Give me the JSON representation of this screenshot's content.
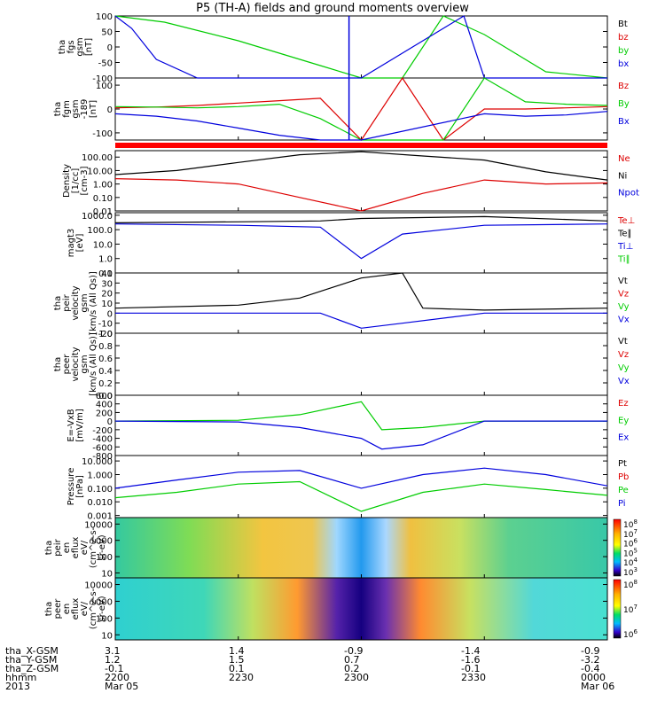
{
  "title": "P5 (TH-A) fields and ground moments overview",
  "colors": {
    "black": "#000000",
    "red": "#dd0000",
    "green": "#00cc00",
    "blue": "#0000dd",
    "bar_red": "#ff0000"
  },
  "panels": [
    {
      "id": "fgs",
      "ylabel_lines": [
        "tha",
        "fgs",
        "gsm",
        "[nT]"
      ],
      "ticks": [
        "100",
        "50",
        "0",
        "-50",
        "-100"
      ],
      "tick_vals": [
        100,
        50,
        0,
        -50,
        -100
      ],
      "ylim": [
        -100,
        100
      ],
      "log": false,
      "legend": [
        {
          "label": "Bt",
          "color": "black"
        },
        {
          "label": "bz",
          "color": "red"
        },
        {
          "label": "by",
          "color": "green"
        },
        {
          "label": "bx",
          "color": "blue"
        }
      ]
    },
    {
      "id": "fgm",
      "ylabel_lines": [
        "tha",
        "fgm",
        "gsm",
        "-189",
        "[nT]"
      ],
      "ticks": [
        "100",
        "0",
        "-100"
      ],
      "tick_vals": [
        100,
        0,
        -100
      ],
      "ylim": [
        -130,
        130
      ],
      "log": false,
      "legend": [
        {
          "label": "Bz",
          "color": "red"
        },
        {
          "label": "By",
          "color": "green"
        },
        {
          "label": "Bx",
          "color": "blue"
        }
      ]
    },
    {
      "id": "density",
      "ylabel_lines": [
        "Density",
        "[1/cc]",
        "[cm-3]"
      ],
      "ticks": [
        "100.00",
        "10.00",
        "1.00",
        "0.10",
        "0.01"
      ],
      "tick_vals": [
        100,
        10,
        1,
        0.1,
        0.01
      ],
      "ylim": [
        0.01,
        300
      ],
      "log": true,
      "legend": [
        {
          "label": "Ne",
          "color": "red"
        },
        {
          "label": "Ni",
          "color": "black"
        },
        {
          "label": "Npot",
          "color": "blue"
        }
      ]
    },
    {
      "id": "temp",
      "ylabel_lines": [
        "magt3",
        "[eV]"
      ],
      "ticks": [
        "1000.0",
        "100.0",
        "10.0",
        "1.0",
        "0.1"
      ],
      "tick_vals": [
        1000,
        100,
        10,
        1,
        0.1
      ],
      "ylim": [
        0.1,
        1500
      ],
      "log": true,
      "legend": [
        {
          "label": "Te⊥",
          "color": "red"
        },
        {
          "label": "Te∥",
          "color": "black"
        },
        {
          "label": "Ti⊥",
          "color": "blue"
        },
        {
          "label": "Ti∥",
          "color": "green"
        }
      ]
    },
    {
      "id": "peir_vel",
      "ylabel_lines": [
        "tha",
        "peir",
        "velocity",
        "gsm",
        "[km/s (All Qs)]"
      ],
      "ticks": [
        "40",
        "30",
        "20",
        "10",
        "0",
        "-10",
        "-20"
      ],
      "tick_vals": [
        40,
        30,
        20,
        10,
        0,
        -10,
        -20
      ],
      "ylim": [
        -20,
        40
      ],
      "log": false,
      "legend": [
        {
          "label": "Vt",
          "color": "black"
        },
        {
          "label": "Vz",
          "color": "red"
        },
        {
          "label": "Vy",
          "color": "green"
        },
        {
          "label": "Vx",
          "color": "blue"
        }
      ]
    },
    {
      "id": "peer_vel",
      "ylabel_lines": [
        "tha",
        "peer",
        "velocity",
        "gsm",
        "[km/s (All Qs)]"
      ],
      "ticks": [
        "1.0",
        "0.8",
        "0.6",
        "0.4",
        "0.2",
        "0.0"
      ],
      "tick_vals": [
        1.0,
        0.8,
        0.6,
        0.4,
        0.2,
        0.0
      ],
      "ylim": [
        0,
        1
      ],
      "log": false,
      "legend": [
        {
          "label": "Vt",
          "color": "black"
        },
        {
          "label": "Vz",
          "color": "red"
        },
        {
          "label": "Vy",
          "color": "green"
        },
        {
          "label": "Vx",
          "color": "blue"
        }
      ]
    },
    {
      "id": "efield",
      "ylabel_lines": [
        "E=-VxB",
        "[mV/m]"
      ],
      "ticks": [
        "600",
        "400",
        "200",
        "0",
        "-200",
        "-400",
        "-600",
        "-800"
      ],
      "tick_vals": [
        600,
        400,
        200,
        0,
        -200,
        -400,
        -600,
        -800
      ],
      "ylim": [
        -800,
        600
      ],
      "log": false,
      "legend": [
        {
          "label": "Ez",
          "color": "red"
        },
        {
          "label": "Ey",
          "color": "green"
        },
        {
          "label": "Ex",
          "color": "blue"
        }
      ]
    },
    {
      "id": "pressure",
      "ylabel_lines": [
        "Pressure",
        "[nPa]"
      ],
      "ticks": [
        "10.000",
        "1.000",
        "0.100",
        "0.010",
        "0.001"
      ],
      "tick_vals": [
        10,
        1,
        0.1,
        0.01,
        0.001
      ],
      "ylim": [
        0.0007,
        25
      ],
      "log": true,
      "legend": [
        {
          "label": "Pt",
          "color": "black"
        },
        {
          "label": "Pb",
          "color": "red"
        },
        {
          "label": "Pe",
          "color": "green"
        },
        {
          "label": "Pi",
          "color": "blue"
        }
      ]
    },
    {
      "id": "peir_spec",
      "ylabel_lines": [
        "tha",
        "peir",
        "en",
        "eflux",
        "eV/",
        "(cm^2-s-",
        "sr-eV)"
      ],
      "ticks": [
        "10000",
        "1000",
        "100",
        "10"
      ],
      "tick_vals": [
        10000,
        1000,
        100,
        10
      ],
      "ylim": [
        5,
        25000
      ],
      "log": true,
      "colorbar": [
        "10^8",
        "10^7",
        "10^6",
        "10^5",
        "10^4",
        "10^3"
      ]
    },
    {
      "id": "peer_spec",
      "ylabel_lines": [
        "tha",
        "peer",
        "en",
        "eflux",
        "eV/",
        "(cm^2-s-",
        "sr-eV)"
      ],
      "ticks": [
        "10000",
        "1000",
        "100",
        "10"
      ],
      "tick_vals": [
        10000,
        1000,
        100,
        10
      ],
      "ylim": [
        5,
        25000
      ],
      "log": true,
      "colorbar": [
        "10^8",
        "10^7",
        "10^6"
      ]
    }
  ],
  "footer": {
    "rows": [
      {
        "label": "tha_X-GSM",
        "values": [
          "3.1",
          "1.4",
          "-0.9",
          "-1.4",
          "-0.9"
        ]
      },
      {
        "label": "tha_Y-GSM",
        "values": [
          "1.2",
          "1.5",
          "0.7",
          "-1.6",
          "-3.2"
        ]
      },
      {
        "label": "tha_Z-GSM",
        "values": [
          "-0.1",
          "0.1",
          "0.2",
          "-0.1",
          "-0.4"
        ]
      },
      {
        "label": "hhmm",
        "values": [
          "2200",
          "2230",
          "2300",
          "2330",
          "0000"
        ]
      },
      {
        "label": "2013",
        "values": [
          "Mar 05",
          "",
          "",
          "",
          "Mar 06"
        ]
      }
    ]
  },
  "chart_data": {
    "type": "line",
    "title": "P5 (TH-A) fields and ground moments overview",
    "xlabel": "hhmm",
    "x_ticks": [
      "2200",
      "2230",
      "2300",
      "2330",
      "0000"
    ],
    "x_range": [
      "2013-03-05 22:00",
      "2013-03-06 00:00"
    ],
    "series": [
      {
        "panel": "fgs",
        "name": "by",
        "x": [
          2200,
          2212,
          2230,
          2250,
          2300,
          2310,
          2320,
          2330,
          2345,
          0
        ],
        "values": [
          100,
          80,
          20,
          -60,
          -100,
          -100,
          100,
          40,
          -80,
          -100
        ]
      },
      {
        "panel": "fgs",
        "name": "bx",
        "x": [
          2200,
          2204,
          2210,
          2220,
          2300,
          2325,
          2330,
          0
        ],
        "values": [
          100,
          60,
          -40,
          -100,
          -100,
          100,
          -100,
          -100
        ]
      },
      {
        "panel": "fgm",
        "name": "Bz",
        "x": [
          2200,
          2210,
          2220,
          2230,
          2240,
          2250,
          2300,
          2310,
          2320,
          2330,
          2340,
          2350,
          0
        ],
        "values": [
          5,
          8,
          15,
          25,
          35,
          45,
          -130,
          130,
          -130,
          0,
          0,
          5,
          10
        ]
      },
      {
        "panel": "fgm",
        "name": "By",
        "x": [
          2200,
          2210,
          2220,
          2230,
          2240,
          2250,
          2300,
          2320,
          2330,
          2340,
          2350,
          0
        ],
        "values": [
          10,
          8,
          5,
          10,
          20,
          -40,
          -130,
          -130,
          130,
          30,
          20,
          15
        ]
      },
      {
        "panel": "fgm",
        "name": "Bx",
        "x": [
          2200,
          2210,
          2220,
          2230,
          2240,
          2250,
          2300,
          2330,
          2340,
          2350,
          0
        ],
        "values": [
          -20,
          -30,
          -50,
          -80,
          -110,
          -130,
          -130,
          -20,
          -30,
          -25,
          -10
        ]
      },
      {
        "panel": "density",
        "name": "Ni",
        "x": [
          2200,
          2215,
          2230,
          2245,
          2300,
          2315,
          2330,
          2345,
          0
        ],
        "values": [
          5,
          10,
          40,
          150,
          250,
          120,
          60,
          8,
          2
        ]
      },
      {
        "panel": "density",
        "name": "Ne",
        "x": [
          2200,
          2215,
          2230,
          2245,
          2300,
          2315,
          2330,
          2345,
          0
        ],
        "values": [
          2.5,
          2,
          1,
          0.1,
          0.01,
          0.2,
          2,
          1,
          1.2
        ]
      },
      {
        "panel": "temp",
        "name": "Te∥",
        "x": [
          2200,
          2230,
          2250,
          2300,
          2330,
          0
        ],
        "values": [
          300,
          350,
          400,
          600,
          800,
          400
        ]
      },
      {
        "panel": "temp",
        "name": "Ti⊥",
        "x": [
          2200,
          2230,
          2250,
          2300,
          2310,
          2330,
          0
        ],
        "values": [
          250,
          200,
          150,
          1,
          50,
          200,
          250
        ]
      },
      {
        "panel": "peir_vel",
        "name": "Vt",
        "x": [
          2200,
          2230,
          2245,
          2300,
          2310,
          2315,
          2330,
          0
        ],
        "values": [
          5,
          8,
          15,
          35,
          40,
          5,
          3,
          5
        ]
      },
      {
        "panel": "peir_vel",
        "name": "Vx",
        "x": [
          2200,
          2230,
          2250,
          2300,
          2310,
          2330,
          0
        ],
        "values": [
          0,
          0,
          0,
          -15,
          -10,
          0,
          0
        ]
      },
      {
        "panel": "efield",
        "name": "Ey",
        "x": [
          2200,
          2230,
          2245,
          2300,
          2305,
          2315,
          2330,
          0
        ],
        "values": [
          0,
          20,
          150,
          450,
          -200,
          -150,
          0,
          0
        ]
      },
      {
        "panel": "efield",
        "name": "Ex",
        "x": [
          2200,
          2230,
          2245,
          2300,
          2305,
          2315,
          2330,
          0
        ],
        "values": [
          0,
          -20,
          -150,
          -400,
          -650,
          -550,
          0,
          0
        ]
      },
      {
        "panel": "pressure",
        "name": "Pi",
        "x": [
          2200,
          2215,
          2230,
          2245,
          2300,
          2315,
          2330,
          2345,
          0
        ],
        "values": [
          0.1,
          0.4,
          1.5,
          2,
          0.1,
          1,
          3,
          1,
          0.15
        ]
      },
      {
        "panel": "pressure",
        "name": "Pe",
        "x": [
          2200,
          2215,
          2230,
          2245,
          2300,
          2315,
          2330,
          2345,
          0
        ],
        "values": [
          0.02,
          0.05,
          0.2,
          0.3,
          0.002,
          0.05,
          0.2,
          0.08,
          0.03
        ]
      }
    ]
  }
}
